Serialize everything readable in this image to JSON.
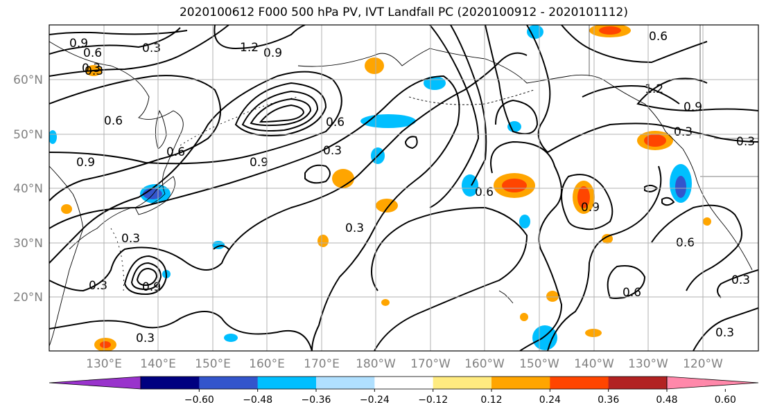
{
  "title": "2020100612 F000 500 hPa PV, IVT Landfall PC (2020100912 - 2020101112)",
  "lat_labels": [
    "60°N",
    "50°N",
    "40°N",
    "30°N",
    "20°N"
  ],
  "lon_labels": [
    "130°E",
    "140°E",
    "150°E",
    "160°E",
    "170°E",
    "180°W",
    "170°W",
    "160°W",
    "150°W",
    "140°W",
    "130°W",
    "120°W"
  ],
  "contour_labels": [
    "0.9",
    "0.6",
    "0.3",
    "1.2",
    "0.9",
    "0.3",
    "0.6",
    "0.9",
    "0.6",
    "0.9",
    "0.3",
    "0.3",
    "0.9",
    "0.3",
    "0.6",
    "0.3",
    "0.6",
    "1.2",
    "0.9",
    "0.3",
    "0.3",
    "0.6",
    "0.6",
    "0.3",
    "0.3",
    "0.6",
    "0.9",
    "0.3",
    "0.3"
  ],
  "colorbar": {
    "colors": [
      "#9933cc",
      "#000080",
      "#3355cc",
      "#00bfff",
      "#b0e0ff",
      "#ffffff",
      "#ffeb80",
      "#ffa500",
      "#ff4500",
      "#b22222",
      "#ff88aa"
    ],
    "tick_labels": [
      "−0.60",
      "−0.48",
      "−0.36",
      "−0.24",
      "−0.12",
      "0.12",
      "0.24",
      "0.36",
      "0.48",
      "0.60"
    ]
  }
}
